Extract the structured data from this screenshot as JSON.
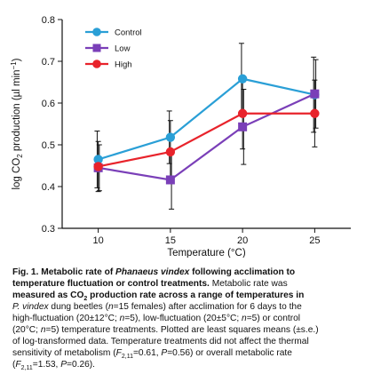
{
  "chart_data": {
    "type": "line",
    "xlabel": "Temperature (°C)",
    "ylabel": "log CO2 production (µl min−1)",
    "x": [
      10,
      15,
      20,
      25
    ],
    "xticks": [
      "10",
      "15",
      "20",
      "25"
    ],
    "ylim": [
      0.3,
      0.8
    ],
    "yticks": [
      "0.3",
      "0.4",
      "0.5",
      "0.6",
      "0.7",
      "0.8"
    ],
    "grid": false,
    "legend": "top-left",
    "series": [
      {
        "name": "Control",
        "color": "#2a9fd6",
        "marker": "circle",
        "values": [
          0.465,
          0.518,
          0.658,
          0.62
        ],
        "err": [
          0.068,
          0.063,
          0.085,
          0.09
        ]
      },
      {
        "name": "Low",
        "color": "#7a3fb8",
        "marker": "square",
        "values": [
          0.445,
          0.416,
          0.543,
          0.622
        ],
        "err": [
          0.055,
          0.07,
          0.09,
          0.082
        ]
      },
      {
        "name": "High",
        "color": "#e8232b",
        "marker": "circle",
        "values": [
          0.448,
          0.483,
          0.575,
          0.575
        ],
        "err": [
          0.06,
          0.075,
          0.085,
          0.08
        ]
      }
    ]
  },
  "caption": {
    "lines": [
      [
        {
          "t": "Fig. 1. Metabolic rate of ",
          "b": true
        },
        {
          "t": "Phanaeus vindex",
          "b": true,
          "i": true
        },
        {
          "t": " following acclimation to",
          "b": true
        }
      ],
      [
        {
          "t": "temperature fluctuation or control treatments.",
          "b": true
        },
        {
          "t": " Metabolic rate was"
        }
      ],
      [
        {
          "t": "measured as CO",
          "b": true
        },
        {
          "t": "2",
          "b": true,
          "sub": true
        },
        {
          "t": " production rate across a range of temperatures in",
          "b": true
        }
      ],
      [
        {
          "t": "P. vindex",
          "i": true
        },
        {
          "t": " dung beetles ("
        },
        {
          "t": "n",
          "i": true
        },
        {
          "t": "=15 females) after acclimation for 6 days to the"
        }
      ],
      [
        {
          "t": "high-fluctuation (20±12°C; "
        },
        {
          "t": "n",
          "i": true
        },
        {
          "t": "=5), low-fluctuation (20±5°C; "
        },
        {
          "t": "n",
          "i": true
        },
        {
          "t": "=5) or control"
        }
      ],
      [
        {
          "t": "(20°C; "
        },
        {
          "t": "n",
          "i": true
        },
        {
          "t": "=5) temperature treatments. Plotted are least squares means (±s.e.)"
        }
      ],
      [
        {
          "t": "of log-transformed data. Temperature treatments did not affect the thermal"
        }
      ],
      [
        {
          "t": "sensitivity of metabolism ("
        },
        {
          "t": "F",
          "i": true
        },
        {
          "t": "2,11",
          "sub": true
        },
        {
          "t": "=0.61, "
        },
        {
          "t": "P",
          "i": true
        },
        {
          "t": "=0.56) or overall metabolic rate"
        }
      ],
      [
        {
          "t": "("
        },
        {
          "t": "F",
          "i": true
        },
        {
          "t": "2,11",
          "sub": true
        },
        {
          "t": "=1.53, "
        },
        {
          "t": "P",
          "i": true
        },
        {
          "t": "=0.26)."
        }
      ]
    ]
  }
}
